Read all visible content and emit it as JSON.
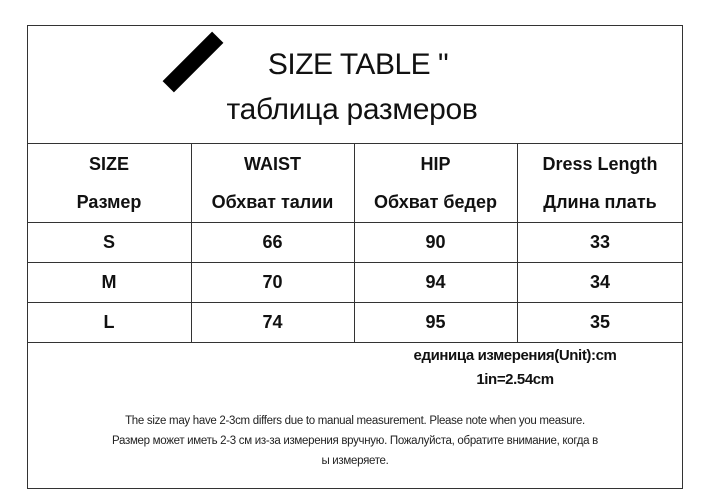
{
  "title": {
    "en": "SIZE TABLE \"",
    "ru": "таблица размеров",
    "decoration": "slash-bar"
  },
  "table": {
    "headers": [
      {
        "en": "SIZE",
        "ru": "Размер"
      },
      {
        "en": "WAIST",
        "ru": "Обхват талии"
      },
      {
        "en": "HIP",
        "ru": "Обхват бедер"
      },
      {
        "en": "Dress  Length",
        "ru": "Длина  плать"
      }
    ],
    "rows": [
      [
        "S",
        "66",
        "90",
        "33"
      ],
      [
        "M",
        "70",
        "94",
        "34"
      ],
      [
        "L",
        "74",
        "95",
        "35"
      ]
    ]
  },
  "unit": {
    "line1": "единица измерения(Unit):cm",
    "line2": "1in=2.54cm"
  },
  "note": {
    "en": "The size may have 2-3cm differs due to manual measurement. Please note when you measure.",
    "ru1": "Размер может иметь 2-3 см из-за измерения вручную. Пожалуйста, обратите внимание, когда в",
    "ru2": "ы измеряете."
  }
}
